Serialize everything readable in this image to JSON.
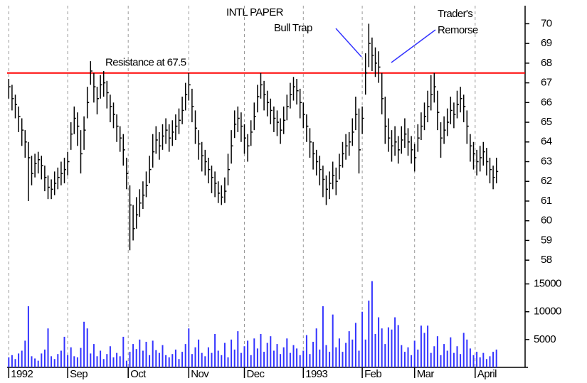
{
  "chart_data": {
    "type": "ohlc",
    "annotations": [
      "INTL PAPER",
      "Bull Trap",
      "Trader's",
      "Remorse"
    ],
    "resistance": {
      "value": 67.5,
      "label": "Resistance at 67.5",
      "color": "#ff0000"
    },
    "xlim": [
      -0.5,
      149.5
    ],
    "xticks": [
      {
        "value": 0,
        "label": "1992"
      },
      {
        "value": 18,
        "label": "Sep"
      },
      {
        "value": 36.5,
        "label": "Oct"
      },
      {
        "value": 55,
        "label": "Nov"
      },
      {
        "value": 72,
        "label": "Dec"
      },
      {
        "value": 90,
        "label": "1993"
      },
      {
        "value": 108,
        "label": "Feb"
      },
      {
        "value": 124,
        "label": "Mar"
      },
      {
        "value": 142.5,
        "label": "April"
      }
    ],
    "ylim": [
      57.5,
      70.7
    ],
    "yticks": [
      58,
      59,
      60,
      61,
      62,
      63,
      64,
      65,
      66,
      67,
      68,
      69,
      70
    ],
    "y2lim": [
      0,
      17500
    ],
    "y2ticks": [
      5000,
      10000,
      15000
    ],
    "grid": true,
    "price_color": "#000000",
    "volume_color": "#3333ff",
    "high": [
      67.2,
      66.9,
      66.4,
      65.8,
      65.2,
      64.6,
      64.0,
      63.3,
      63.4,
      63.5,
      63.3,
      62.8,
      62.3,
      62.1,
      62.5,
      62.7,
      63.0,
      63.2,
      63.5,
      65.0,
      65.8,
      65.5,
      64.6,
      65.3,
      66.8,
      68.1,
      67.5,
      66.8,
      67.4,
      67.6,
      67.1,
      66.4,
      66.0,
      65.4,
      64.8,
      64.4,
      63.2,
      61.8,
      60.8,
      61.2,
      61.6,
      62.0,
      62.5,
      63.3,
      64.4,
      64.8,
      64.5,
      64.9,
      65.2,
      64.9,
      65.1,
      65.4,
      65.7,
      66.3,
      67.0,
      67.5,
      66.7,
      65.6,
      64.6,
      64.0,
      63.6,
      63.2,
      62.8,
      62.5,
      62.0,
      61.8,
      62.2,
      63.4,
      64.6,
      65.6,
      65.8,
      65.5,
      64.9,
      64.4,
      65.1,
      66.0,
      66.9,
      67.5,
      67.1,
      66.6,
      66.2,
      65.8,
      65.6,
      65.2,
      65.8,
      66.4,
      67.0,
      67.3,
      67.2,
      66.7,
      66.0,
      65.4,
      64.7,
      64.0,
      63.6,
      63.3,
      62.8,
      62.3,
      62.5,
      63.0,
      62.7,
      63.4,
      64.0,
      64.4,
      64.5,
      65.2,
      66.3,
      65.7,
      65.8,
      68.5,
      70.0,
      69.3,
      68.8,
      68.6,
      67.5,
      66.3,
      65.2,
      64.6,
      64.8,
      64.3,
      64.8,
      65.2,
      64.7,
      64.3,
      63.9,
      64.9,
      65.5,
      66.0,
      66.6,
      67.4,
      67.5,
      66.6,
      65.0,
      65.3,
      65.7,
      66.3,
      66.0,
      66.6,
      66.8,
      66.4,
      65.6,
      64.4,
      64.0,
      63.6,
      63.8,
      64.0,
      63.7,
      63.2,
      62.8,
      63.2
    ],
    "low": [
      66.2,
      65.6,
      65.2,
      64.5,
      63.8,
      63.2,
      61.0,
      61.8,
      62.2,
      62.4,
      62.1,
      61.5,
      61.1,
      61.1,
      61.3,
      61.6,
      61.8,
      61.9,
      62.3,
      63.6,
      64.4,
      63.8,
      62.4,
      63.6,
      65.2,
      66.9,
      66.0,
      65.4,
      66.2,
      66.3,
      65.7,
      65.0,
      64.7,
      64.0,
      63.5,
      62.8,
      61.6,
      58.5,
      59.0,
      59.6,
      60.2,
      60.6,
      61.2,
      61.9,
      62.7,
      63.4,
      63.1,
      63.6,
      63.9,
      63.5,
      63.8,
      64.1,
      64.4,
      64.9,
      65.6,
      66.1,
      65.0,
      63.9,
      63.1,
      62.5,
      62.3,
      61.9,
      61.4,
      61.2,
      60.9,
      60.8,
      60.9,
      61.8,
      62.9,
      64.2,
      64.5,
      64.0,
      63.4,
      63.0,
      63.8,
      64.6,
      65.5,
      66.2,
      65.6,
      65.3,
      64.9,
      64.5,
      64.3,
      63.9,
      64.4,
      65.1,
      65.7,
      66.1,
      65.9,
      65.2,
      64.7,
      64.0,
      63.2,
      62.6,
      62.3,
      61.8,
      61.2,
      60.8,
      61.1,
      61.6,
      61.3,
      62.1,
      62.7,
      63.1,
      63.3,
      63.8,
      64.6,
      62.4,
      64.4,
      66.4,
      67.8,
      67.6,
      67.3,
      67.0,
      65.4,
      63.9,
      63.5,
      63.0,
      63.3,
      62.9,
      63.4,
      63.7,
      63.3,
      62.9,
      62.5,
      63.5,
      64.1,
      64.6,
      65.0,
      65.6,
      66.0,
      64.6,
      63.2,
      63.9,
      64.3,
      64.9,
      64.7,
      65.2,
      65.5,
      65.0,
      63.9,
      63.0,
      62.6,
      62.3,
      62.5,
      62.8,
      62.3,
      61.9,
      61.6,
      61.9
    ],
    "close": [
      66.8,
      66.2,
      65.9,
      65.3,
      64.6,
      64.0,
      63.2,
      62.4,
      62.9,
      63.1,
      62.8,
      62.2,
      61.7,
      61.6,
      61.9,
      62.2,
      62.4,
      62.6,
      63.0,
      64.4,
      65.2,
      64.8,
      63.4,
      64.6,
      66.0,
      67.6,
      66.8,
      66.2,
      66.9,
      67.0,
      66.5,
      65.8,
      65.4,
      64.8,
      64.2,
      63.6,
      62.4,
      60.8,
      59.6,
      60.3,
      60.9,
      61.3,
      61.8,
      62.6,
      63.5,
      64.1,
      63.8,
      64.3,
      64.6,
      64.2,
      64.5,
      64.8,
      65.1,
      65.6,
      66.4,
      66.9,
      65.8,
      64.7,
      63.9,
      63.3,
      63.0,
      62.6,
      62.2,
      61.9,
      61.4,
      61.2,
      61.5,
      62.6,
      63.8,
      64.9,
      65.2,
      64.8,
      64.2,
      63.8,
      64.5,
      65.3,
      66.3,
      66.9,
      66.4,
      66.0,
      65.6,
      65.2,
      65.0,
      64.6,
      65.1,
      65.8,
      66.4,
      66.8,
      66.6,
      66.0,
      65.4,
      64.8,
      64.0,
      63.4,
      63.0,
      62.6,
      62.1,
      61.6,
      61.9,
      62.3,
      62.0,
      62.8,
      63.4,
      63.8,
      64.0,
      64.5,
      65.4,
      63.6,
      65.2,
      67.5,
      69.0,
      68.4,
      68.0,
      67.8,
      66.2,
      64.8,
      64.2,
      63.8,
      64.0,
      63.6,
      64.1,
      64.4,
      64.0,
      63.6,
      63.2,
      64.2,
      64.8,
      65.3,
      65.8,
      66.4,
      66.8,
      65.5,
      64.2,
      64.6,
      65.0,
      65.6,
      65.4,
      65.9,
      66.2,
      65.8,
      64.8,
      63.8,
      63.4,
      63.0,
      63.2,
      63.5,
      63.0,
      62.6,
      62.2,
      62.5
    ],
    "volume": [
      1800,
      2200,
      1500,
      2500,
      3000,
      4800,
      11000,
      2000,
      1600,
      1200,
      2500,
      3200,
      7000,
      2000,
      1500,
      2400,
      3000,
      5500,
      2200,
      3600,
      2000,
      1800,
      3500,
      8200,
      7000,
      2500,
      4200,
      2000,
      3000,
      1500,
      2400,
      3800,
      1800,
      2600,
      2000,
      5500,
      1200,
      2800,
      4200,
      3300,
      5000,
      3000,
      4600,
      2200,
      4800,
      3100,
      2600,
      4000,
      2200,
      1800,
      2400,
      3200,
      1500,
      2800,
      4200,
      7000,
      2400,
      3600,
      5000,
      2600,
      2000,
      3600,
      2600,
      6000,
      3000,
      2200,
      4400,
      1800,
      5000,
      3200,
      6500,
      2600,
      3800,
      4800,
      2200,
      5200,
      3400,
      6000,
      2800,
      4400,
      5600,
      3000,
      4200,
      2400,
      3600,
      5200,
      2600,
      4000,
      3400,
      2200,
      3000,
      5800,
      2400,
      4600,
      7000,
      3200,
      11000,
      4000,
      2800,
      9500,
      3600,
      5200,
      2800,
      4400,
      6500,
      5000,
      8000,
      3000,
      10000,
      5000,
      12000,
      15500,
      6000,
      9000,
      7000,
      4200,
      7200,
      6800,
      9000,
      7600,
      4000,
      2800,
      3600,
      2200,
      4800,
      3200,
      7500,
      6200,
      7500,
      2600,
      3800,
      5600,
      2200,
      4200,
      3000,
      5400,
      2600,
      3800,
      2400,
      6200,
      5000,
      3400,
      2200,
      2800,
      1800,
      2600,
      1500,
      2000,
      2800,
      3200
    ]
  }
}
